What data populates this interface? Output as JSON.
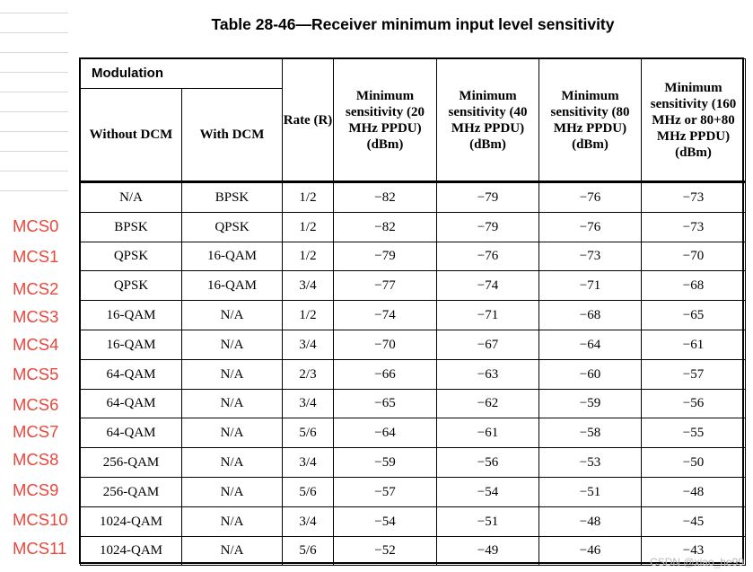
{
  "title": "Table 28-46—Receiver minimum input level sensitivity",
  "header": {
    "modulation": "Modulation",
    "without_dcm": "Without DCM",
    "with_dcm": "With DCM",
    "rate": "Rate (R)",
    "sens_20": "Minimum sensitivity (20 MHz PPDU) (dBm)",
    "sens_40": "Minimum sensitivity (40 MHz PPDU) (dBm)",
    "sens_80": "Minimum sensitivity (80 MHz PPDU) (dBm)",
    "sens_160": "Minimum sensitivity (160 MHz or 80+80 MHz PPDU) (dBm)"
  },
  "rows": [
    {
      "without_dcm": "N/A",
      "with_dcm": "BPSK",
      "rate": "1/2",
      "s20": "−82",
      "s40": "−79",
      "s80": "−76",
      "s160": "−73"
    },
    {
      "without_dcm": "BPSK",
      "with_dcm": "QPSK",
      "rate": "1/2",
      "s20": "−82",
      "s40": "−79",
      "s80": "−76",
      "s160": "−73"
    },
    {
      "without_dcm": "QPSK",
      "with_dcm": "16-QAM",
      "rate": "1/2",
      "s20": "−79",
      "s40": "−76",
      "s80": "−73",
      "s160": "−70"
    },
    {
      "without_dcm": "QPSK",
      "with_dcm": "16-QAM",
      "rate": "3/4",
      "s20": "−77",
      "s40": "−74",
      "s80": "−71",
      "s160": "−68"
    },
    {
      "without_dcm": "16-QAM",
      "with_dcm": "N/A",
      "rate": "1/2",
      "s20": "−74",
      "s40": "−71",
      "s80": "−68",
      "s160": "−65"
    },
    {
      "without_dcm": "16-QAM",
      "with_dcm": "N/A",
      "rate": "3/4",
      "s20": "−70",
      "s40": "−67",
      "s80": "−64",
      "s160": "−61"
    },
    {
      "without_dcm": "64-QAM",
      "with_dcm": "N/A",
      "rate": "2/3",
      "s20": "−66",
      "s40": "−63",
      "s80": "−60",
      "s160": "−57"
    },
    {
      "without_dcm": "64-QAM",
      "with_dcm": "N/A",
      "rate": "3/4",
      "s20": "−65",
      "s40": "−62",
      "s80": "−59",
      "s160": "−56"
    },
    {
      "without_dcm": "64-QAM",
      "with_dcm": "N/A",
      "rate": "5/6",
      "s20": "−64",
      "s40": "−61",
      "s80": "−58",
      "s160": "−55"
    },
    {
      "without_dcm": "256-QAM",
      "with_dcm": "N/A",
      "rate": "3/4",
      "s20": "−59",
      "s40": "−56",
      "s80": "−53",
      "s160": "−50"
    },
    {
      "without_dcm": "256-QAM",
      "with_dcm": "N/A",
      "rate": "5/6",
      "s20": "−57",
      "s40": "−54",
      "s80": "−51",
      "s160": "−48"
    },
    {
      "without_dcm": "1024-QAM",
      "with_dcm": "N/A",
      "rate": "3/4",
      "s20": "−54",
      "s40": "−51",
      "s80": "−48",
      "s160": "−45"
    },
    {
      "without_dcm": "1024-QAM",
      "with_dcm": "N/A",
      "rate": "5/6",
      "s20": "−52",
      "s40": "−49",
      "s80": "−46",
      "s160": "−43"
    }
  ],
  "mcs_labels": [
    "MCS0",
    "MCS1",
    "MCS2",
    "MCS3",
    "MCS4",
    "MCS5",
    "MCS6",
    "MCS7",
    "MCS8",
    "MCS9",
    "MCS10",
    "MCS11"
  ],
  "watermark": "CSDN @xiao_he99",
  "colors": {
    "annotation": "#e8473c"
  }
}
